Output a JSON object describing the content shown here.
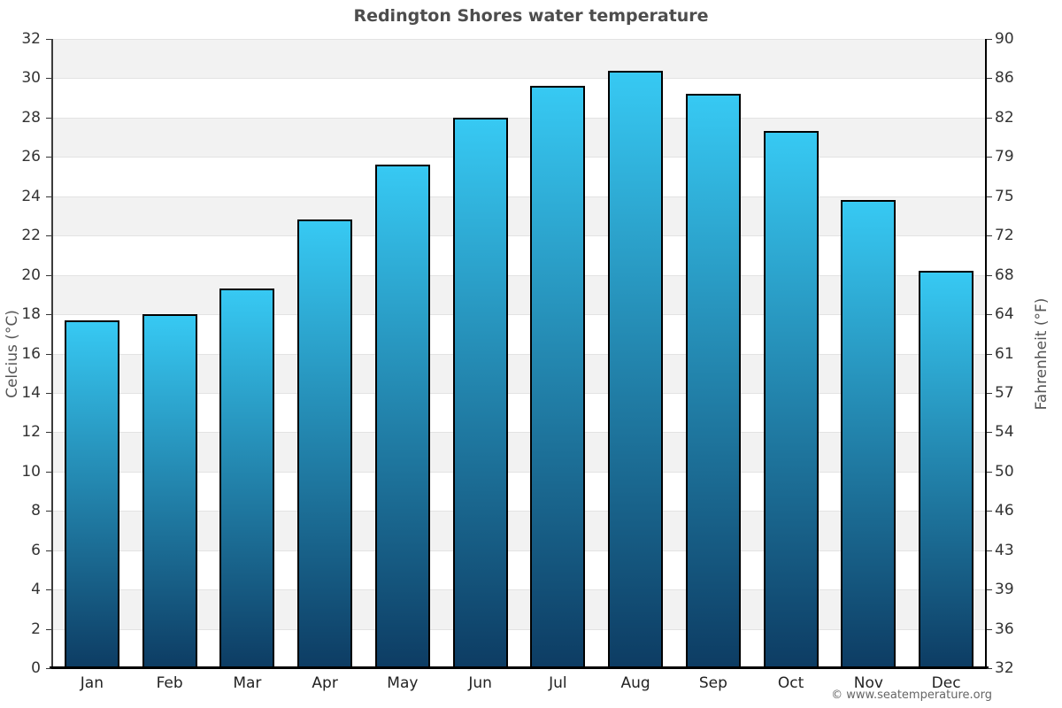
{
  "title": "Redington Shores water temperature",
  "watermark": "© www.seatemperature.org",
  "chart_data": {
    "type": "bar",
    "title": "Redington Shores water temperature",
    "categories": [
      "Jan",
      "Feb",
      "Mar",
      "Apr",
      "May",
      "Jun",
      "Jul",
      "Aug",
      "Sep",
      "Oct",
      "Nov",
      "Dec"
    ],
    "values": [
      17.7,
      18.0,
      19.3,
      22.8,
      25.6,
      28.0,
      29.6,
      30.4,
      29.2,
      27.3,
      23.8,
      20.2
    ],
    "unit": "°C",
    "xlabel": "",
    "ylabel_left": "Celcius (°C)",
    "ylabel_right": "Fahrenheit (°F)",
    "ylim_celsius": [
      0,
      32
    ],
    "ylim_fahrenheit": [
      32,
      90
    ],
    "celsius_ticks": [
      0,
      2,
      4,
      6,
      8,
      10,
      12,
      14,
      16,
      18,
      20,
      22,
      24,
      26,
      28,
      30,
      32
    ],
    "fahrenheit_ticks": [
      32,
      36,
      39,
      43,
      46,
      50,
      54,
      57,
      61,
      64,
      68,
      72,
      75,
      79,
      82,
      86,
      90
    ],
    "legend": "none",
    "grid": "alternating-horizontal-bands",
    "colors": {
      "bar_gradient_top": "#37c9f3",
      "bar_gradient_bottom": "#0d3c63",
      "bar_border": "#000000",
      "band_fill": "#f2f2f2",
      "band_alt_fill": "#ffffff",
      "title_text": "#4d4d4d",
      "tick_text": "#333333",
      "axis_label_text": "#555555",
      "watermark_text": "#666666"
    }
  }
}
